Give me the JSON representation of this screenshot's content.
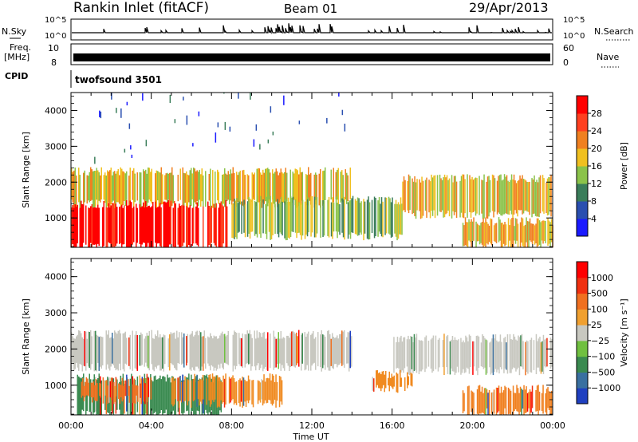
{
  "header": {
    "station": "Rankin Inlet (fitACF)",
    "beam": "Beam 01",
    "date": "29/Apr/2013"
  },
  "status_panels": {
    "nsky": {
      "label": "N.Sky",
      "right_label": "N.Search",
      "ticks": [
        "10^5",
        "10^0"
      ],
      "right_ticks": [
        "10^5",
        "10^0"
      ]
    },
    "freq": {
      "label_line1": "Freq.",
      "label_line2": "[MHz]",
      "ticks": [
        "10",
        "8"
      ],
      "right_label": "Nave",
      "right_ticks": [
        "60",
        "0"
      ]
    },
    "cpid": {
      "label": "CPID",
      "value": "twofsound  3501"
    }
  },
  "chart_data": [
    {
      "type": "heatmap",
      "name": "power-panel",
      "xlabel": "Time UT",
      "ylabel": "Slant Range [km]",
      "xlim": [
        0,
        24
      ],
      "ylim": [
        180,
        4500
      ],
      "yticks": [
        1000,
        2000,
        3000,
        4000
      ],
      "colorbar": {
        "label": "Power [dB]",
        "ticks": [
          "4",
          "8",
          "12",
          "16",
          "20",
          "24",
          "28"
        ],
        "colors": [
          "#1a1aff",
          "#2a4fb0",
          "#3a7d5a",
          "#8bc34a",
          "#f0c020",
          "#f08020",
          "#ff4020",
          "#ff0000"
        ]
      },
      "bands": [
        {
          "t0": 0.0,
          "t1": 7.8,
          "r0": 200,
          "r1": 1400,
          "level": 7
        },
        {
          "t0": 0.0,
          "t1": 14.0,
          "r0": 1400,
          "r1": 2300,
          "level": 4
        },
        {
          "t0": 8.0,
          "t1": 16.5,
          "r0": 500,
          "r1": 1500,
          "level": 3
        },
        {
          "t0": 16.5,
          "t1": 24.0,
          "r0": 1100,
          "r1": 2100,
          "level": 4
        },
        {
          "t0": 19.5,
          "t1": 24.0,
          "r0": 250,
          "r1": 900,
          "level": 4
        },
        {
          "t0": 0.5,
          "t1": 14.0,
          "r0": 2300,
          "r1": 4500,
          "level": 1
        }
      ]
    },
    {
      "type": "heatmap",
      "name": "velocity-panel",
      "xlabel": "Time UT",
      "ylabel": "Slant Range [km]",
      "xlim": [
        0,
        24
      ],
      "ylim": [
        180,
        4500
      ],
      "yticks": [
        1000,
        2000,
        3000,
        4000
      ],
      "xticks": [
        "00:00",
        "04:00",
        "08:00",
        "12:00",
        "16:00",
        "20:00",
        "00:00"
      ],
      "colorbar": {
        "label": "Velocity [m s⁻¹]",
        "ticks": [
          "1000",
          "500",
          "100",
          "25",
          "−25",
          "−100",
          "−500",
          "−1000"
        ],
        "colors": [
          "#2040c0",
          "#3a70a0",
          "#3a8a50",
          "#70c040",
          "#c8c8c0",
          "#f0a030",
          "#f07020",
          "#f03010",
          "#ff0000"
        ]
      },
      "bands": [
        {
          "t0": 0.0,
          "t1": 14.0,
          "r0": 1500,
          "r1": 2400,
          "color": "#c8c8c0"
        },
        {
          "t0": 16.0,
          "t1": 24.0,
          "r0": 1400,
          "r1": 2300,
          "color": "#c8c8c0"
        },
        {
          "t0": 0.3,
          "t1": 7.5,
          "r0": 200,
          "r1": 1200,
          "color": "#3a8a50"
        },
        {
          "t0": 0.5,
          "t1": 4.0,
          "r0": 600,
          "r1": 1100,
          "color": "#f07020"
        },
        {
          "t0": 5.0,
          "t1": 10.5,
          "r0": 500,
          "r1": 1200,
          "color": "#f08a20"
        },
        {
          "t0": 15.0,
          "t1": 17.0,
          "r0": 900,
          "r1": 1300,
          "color": "#f08a20"
        },
        {
          "t0": 19.5,
          "t1": 24.0,
          "r0": 250,
          "r1": 900,
          "color": "#f08020"
        }
      ]
    }
  ]
}
